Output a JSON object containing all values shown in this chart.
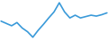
{
  "x": [
    0,
    1,
    2,
    3,
    4,
    5,
    6,
    7,
    8,
    9,
    10,
    11,
    12,
    13,
    14,
    15,
    16,
    17,
    18,
    19,
    20
  ],
  "y": [
    6.5,
    6.0,
    5.5,
    6.2,
    5.0,
    4.2,
    3.0,
    4.5,
    5.8,
    7.2,
    8.5,
    10.5,
    8.5,
    7.2,
    7.8,
    7.2,
    7.5,
    7.8,
    7.6,
    7.9,
    8.3
  ],
  "line_color": "#3a9ad9",
  "line_width": 1.2,
  "background_color": "#ffffff"
}
